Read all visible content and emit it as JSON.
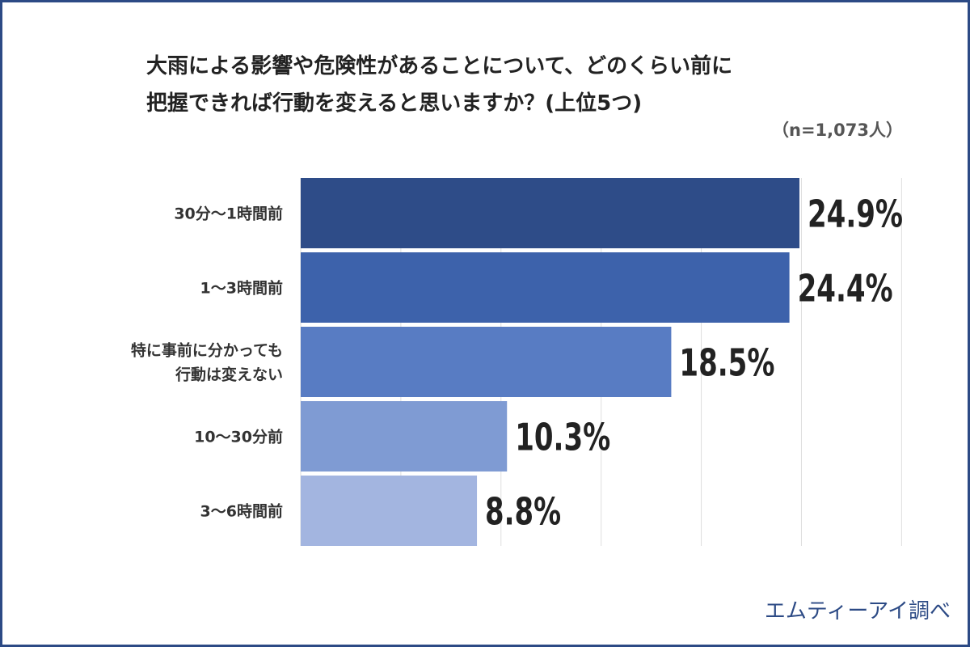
{
  "title_lines": [
    "大雨による影響や危険性があることについて、どのくらい前に",
    "把握できれば行動を変えると思いますか？(上位5つ)"
  ],
  "sample_size": "（n=1,073人）",
  "credit": "エムティーアイ調べ",
  "chart_data": {
    "type": "bar",
    "orientation": "horizontal",
    "categories": [
      [
        "30分〜1時間前"
      ],
      [
        "1〜3時間前"
      ],
      [
        "特に事前に分かっても",
        "行動は変えない"
      ],
      [
        "10〜30分前"
      ],
      [
        "3〜6時間前"
      ]
    ],
    "values": [
      24.9,
      24.4,
      18.5,
      10.3,
      8.8
    ],
    "value_labels": [
      "24.9%",
      "24.4%",
      "18.5%",
      "10.3%",
      "8.8%"
    ],
    "xlim": [
      0,
      30
    ],
    "grid": true,
    "colors": [
      "#2e4c88",
      "#3d62ab",
      "#587cc3",
      "#7f9bd3",
      "#a3b5e0"
    ]
  }
}
